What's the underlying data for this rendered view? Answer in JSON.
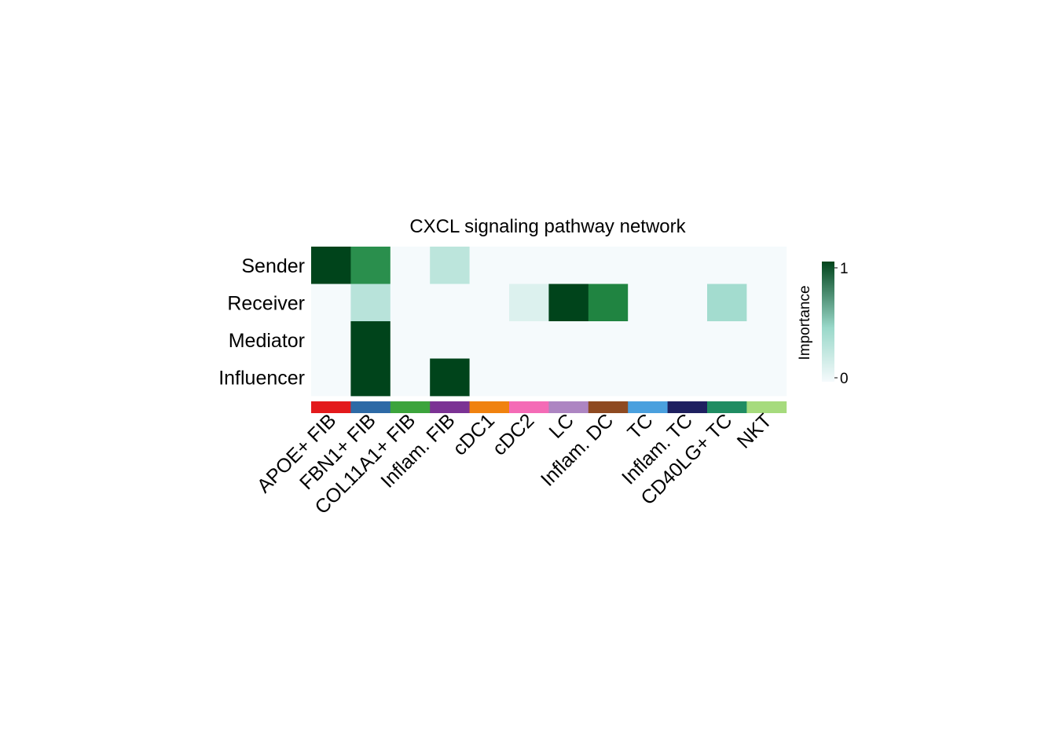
{
  "chart_data": {
    "type": "heatmap",
    "title": "CXCL signaling pathway network",
    "rows": [
      "Sender",
      "Receiver",
      "Mediator",
      "Influencer"
    ],
    "columns": [
      "APOE+ FIB",
      "FBN1+ FIB",
      "COL11A1+ FIB",
      "Inflam. FIB",
      "cDC1",
      "cDC2",
      "LC",
      "Inflam. DC",
      "TC",
      "Inflam. TC",
      "CD40LG+ TC",
      "NKT"
    ],
    "column_colors": [
      "#e31a1c",
      "#2d6aa6",
      "#3ca43c",
      "#7b3294",
      "#f0820f",
      "#f46bb6",
      "#ad85c2",
      "#8e4a21",
      "#4aa0de",
      "#1e2060",
      "#1f8c62",
      "#a6db7d"
    ],
    "values": [
      [
        1.0,
        0.78,
        0.0,
        0.28,
        0.0,
        0.0,
        0.0,
        0.0,
        0.0,
        0.0,
        0.0,
        0.0
      ],
      [
        0.0,
        0.3,
        0.0,
        0.0,
        0.0,
        0.12,
        1.0,
        0.82,
        0.0,
        0.0,
        0.4,
        0.0
      ],
      [
        0.0,
        1.0,
        0.0,
        0.0,
        0.0,
        0.0,
        0.0,
        0.0,
        0.0,
        0.0,
        0.0,
        0.0
      ],
      [
        0.0,
        1.0,
        0.0,
        1.0,
        0.0,
        0.0,
        0.0,
        0.0,
        0.0,
        0.0,
        0.0,
        0.0
      ]
    ],
    "colorbar": {
      "label": "Importance",
      "min_label": "0",
      "max_label": "1",
      "low_color": "#f5fafc",
      "mid_color": "#99d8c9",
      "high_color": "#00441b"
    }
  }
}
